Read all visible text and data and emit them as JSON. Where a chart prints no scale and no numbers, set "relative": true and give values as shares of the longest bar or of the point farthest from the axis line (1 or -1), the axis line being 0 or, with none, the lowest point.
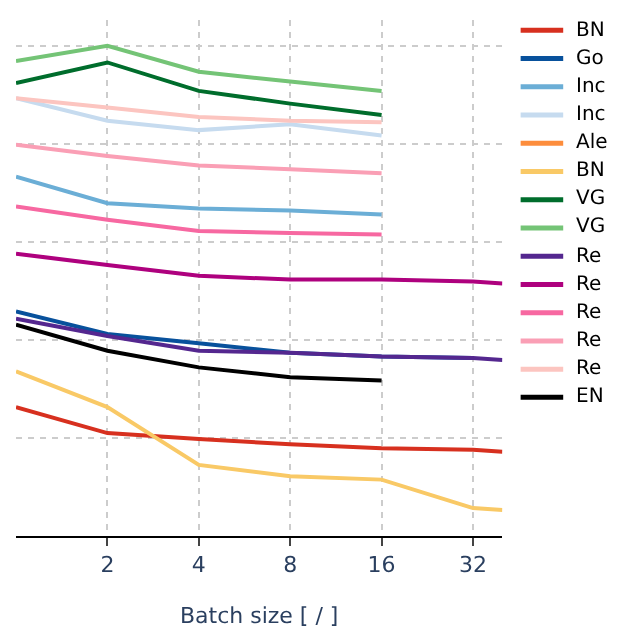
{
  "chart_data": {
    "type": "line",
    "relative": true,
    "xlabel": "Batch size [ / ]",
    "log": "x",
    "xlim": [
      1,
      40
    ],
    "xticks": [
      2,
      4,
      8,
      16,
      32
    ],
    "grid": true,
    "legend": "right",
    "marker": "none",
    "line_style": "solid",
    "x": [
      1,
      2,
      4,
      8,
      16
    ],
    "series": [
      {
        "name": "BN",
        "color": "#d7301f",
        "x": [
          1,
          2,
          4,
          8,
          16,
          32,
          40
        ],
        "values": [
          0.263,
          0.21,
          0.198,
          0.187,
          0.179,
          0.176,
          0.172
        ]
      },
      {
        "name": "Go",
        "color": "#08519c",
        "x": [
          1,
          2,
          4,
          8,
          16,
          32
        ],
        "values": [
          0.458,
          0.412,
          0.393,
          0.374,
          0.366,
          0.363
        ]
      },
      {
        "name": "Inc",
        "color": "#6baed6",
        "values": [
          0.733,
          0.679,
          0.668,
          0.664,
          0.656
        ]
      },
      {
        "name": "Inc",
        "color": "#c6dbef",
        "values": [
          0.893,
          0.847,
          0.828,
          0.84,
          0.817
        ]
      },
      {
        "name": "Ale",
        "color": "#fd8d3c",
        "values": [
          null,
          null,
          null,
          null,
          null
        ]
      },
      {
        "name": "BN",
        "color": "#f9c966",
        "x": [
          1,
          2,
          4,
          8,
          16,
          32,
          40
        ],
        "values": [
          0.336,
          0.263,
          0.145,
          0.122,
          0.115,
          0.057,
          0.053
        ]
      },
      {
        "name": "VG",
        "color": "#006d2c",
        "values": [
          0.924,
          0.966,
          0.908,
          0.882,
          0.859
        ]
      },
      {
        "name": "VG",
        "color": "#74c476",
        "values": [
          0.969,
          1.0,
          0.947,
          0.927,
          0.908
        ]
      },
      {
        "name": "Re",
        "color": "#54278f",
        "x": [
          1,
          2,
          4,
          8,
          16,
          32,
          40
        ],
        "values": [
          0.443,
          0.408,
          0.378,
          0.374,
          0.366,
          0.363,
          0.359
        ]
      },
      {
        "name": "Re",
        "color": "#ae017e",
        "x": [
          1,
          2,
          4,
          8,
          16,
          32,
          40
        ],
        "values": [
          0.576,
          0.553,
          0.531,
          0.523,
          0.523,
          0.519,
          0.515
        ]
      },
      {
        "name": "Re",
        "color": "#f768a1",
        "values": [
          0.672,
          0.645,
          0.622,
          0.618,
          0.615
        ]
      },
      {
        "name": "Re",
        "color": "#fa9fb5",
        "values": [
          0.798,
          0.775,
          0.756,
          0.748,
          0.74
        ]
      },
      {
        "name": "Re",
        "color": "#fcc5c0",
        "values": [
          0.893,
          0.874,
          0.855,
          0.847,
          0.844
        ]
      },
      {
        "name": "EN",
        "color": "#000000",
        "values": [
          0.431,
          0.378,
          0.344,
          0.324,
          0.317
        ]
      }
    ]
  }
}
